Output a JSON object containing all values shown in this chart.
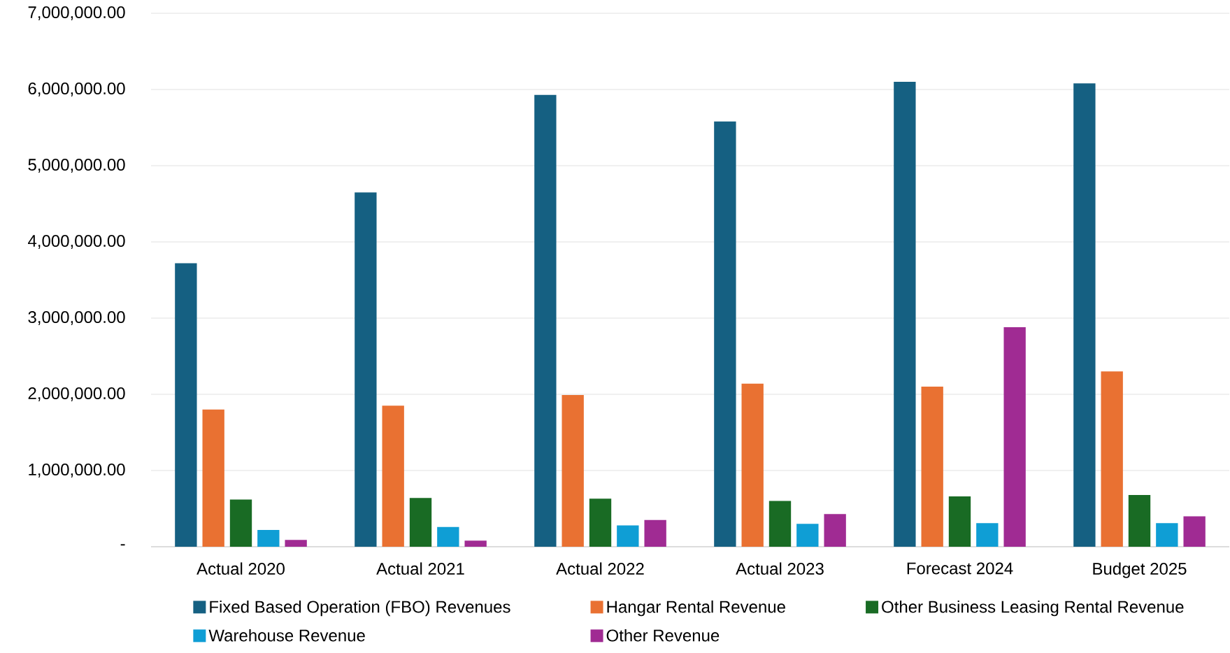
{
  "chart_data": {
    "type": "bar",
    "categories": [
      "Actual 2020",
      "Actual 2021",
      "Actual 2022",
      "Actual 2023",
      "Forecast 2024",
      "Budget 2025"
    ],
    "series": [
      {
        "name": "Fixed Based Operation (FBO) Revenues",
        "color": "#156082",
        "values": [
          3720000,
          4650000,
          5930000,
          5580000,
          6100000,
          6080000
        ]
      },
      {
        "name": "Hangar Rental Revenue",
        "color": "#e97132",
        "values": [
          1800000,
          1850000,
          1990000,
          2140000,
          2100000,
          2300000
        ]
      },
      {
        "name": "Other Business Leasing Rental Revenue",
        "color": "#196b24",
        "values": [
          620000,
          640000,
          630000,
          600000,
          660000,
          680000
        ]
      },
      {
        "name": "Warehouse Revenue",
        "color": "#0f9ed5",
        "values": [
          220000,
          260000,
          280000,
          300000,
          310000,
          310000
        ]
      },
      {
        "name": "Other Revenue",
        "color": "#a02b93",
        "values": [
          90000,
          80000,
          350000,
          430000,
          2880000,
          400000
        ]
      }
    ],
    "ylim": [
      0,
      7000000
    ],
    "yticks": [
      {
        "value": 0,
        "label": "-"
      },
      {
        "value": 1000000,
        "label": "1,000,000.00"
      },
      {
        "value": 2000000,
        "label": "2,000,000.00"
      },
      {
        "value": 3000000,
        "label": "3,000,000.00"
      },
      {
        "value": 4000000,
        "label": "4,000,000.00"
      },
      {
        "value": 5000000,
        "label": "5,000,000.00"
      },
      {
        "value": 6000000,
        "label": "6,000,000.00"
      },
      {
        "value": 7000000,
        "label": "7,000,000.00"
      }
    ],
    "grid": "y",
    "legend": "bottom"
  }
}
